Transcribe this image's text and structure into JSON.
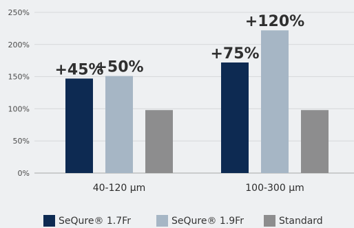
{
  "chart_data": {
    "type": "bar",
    "categories": [
      "40-120 µm",
      "100-300 µm"
    ],
    "series": [
      {
        "name": "SeQure® 1.7Fr",
        "values": [
          147,
          172
        ],
        "labels": [
          "+45%",
          "+75%"
        ],
        "color": "#0d2a52"
      },
      {
        "name": "SeQure® 1.9Fr",
        "values": [
          151,
          222
        ],
        "labels": [
          "+50%",
          "+120%"
        ],
        "color": "#a6b6c5"
      },
      {
        "name": "Standard",
        "values": [
          98,
          98
        ],
        "labels": [
          "",
          ""
        ],
        "color": "#8d8d8e"
      }
    ],
    "yticks": [
      "0%",
      "50%",
      "100%",
      "150%",
      "200%",
      "250%"
    ],
    "ylim": [
      0,
      250
    ],
    "grid": true,
    "legend_position": "bottom",
    "xlabel": "",
    "ylabel": "",
    "title": ""
  }
}
